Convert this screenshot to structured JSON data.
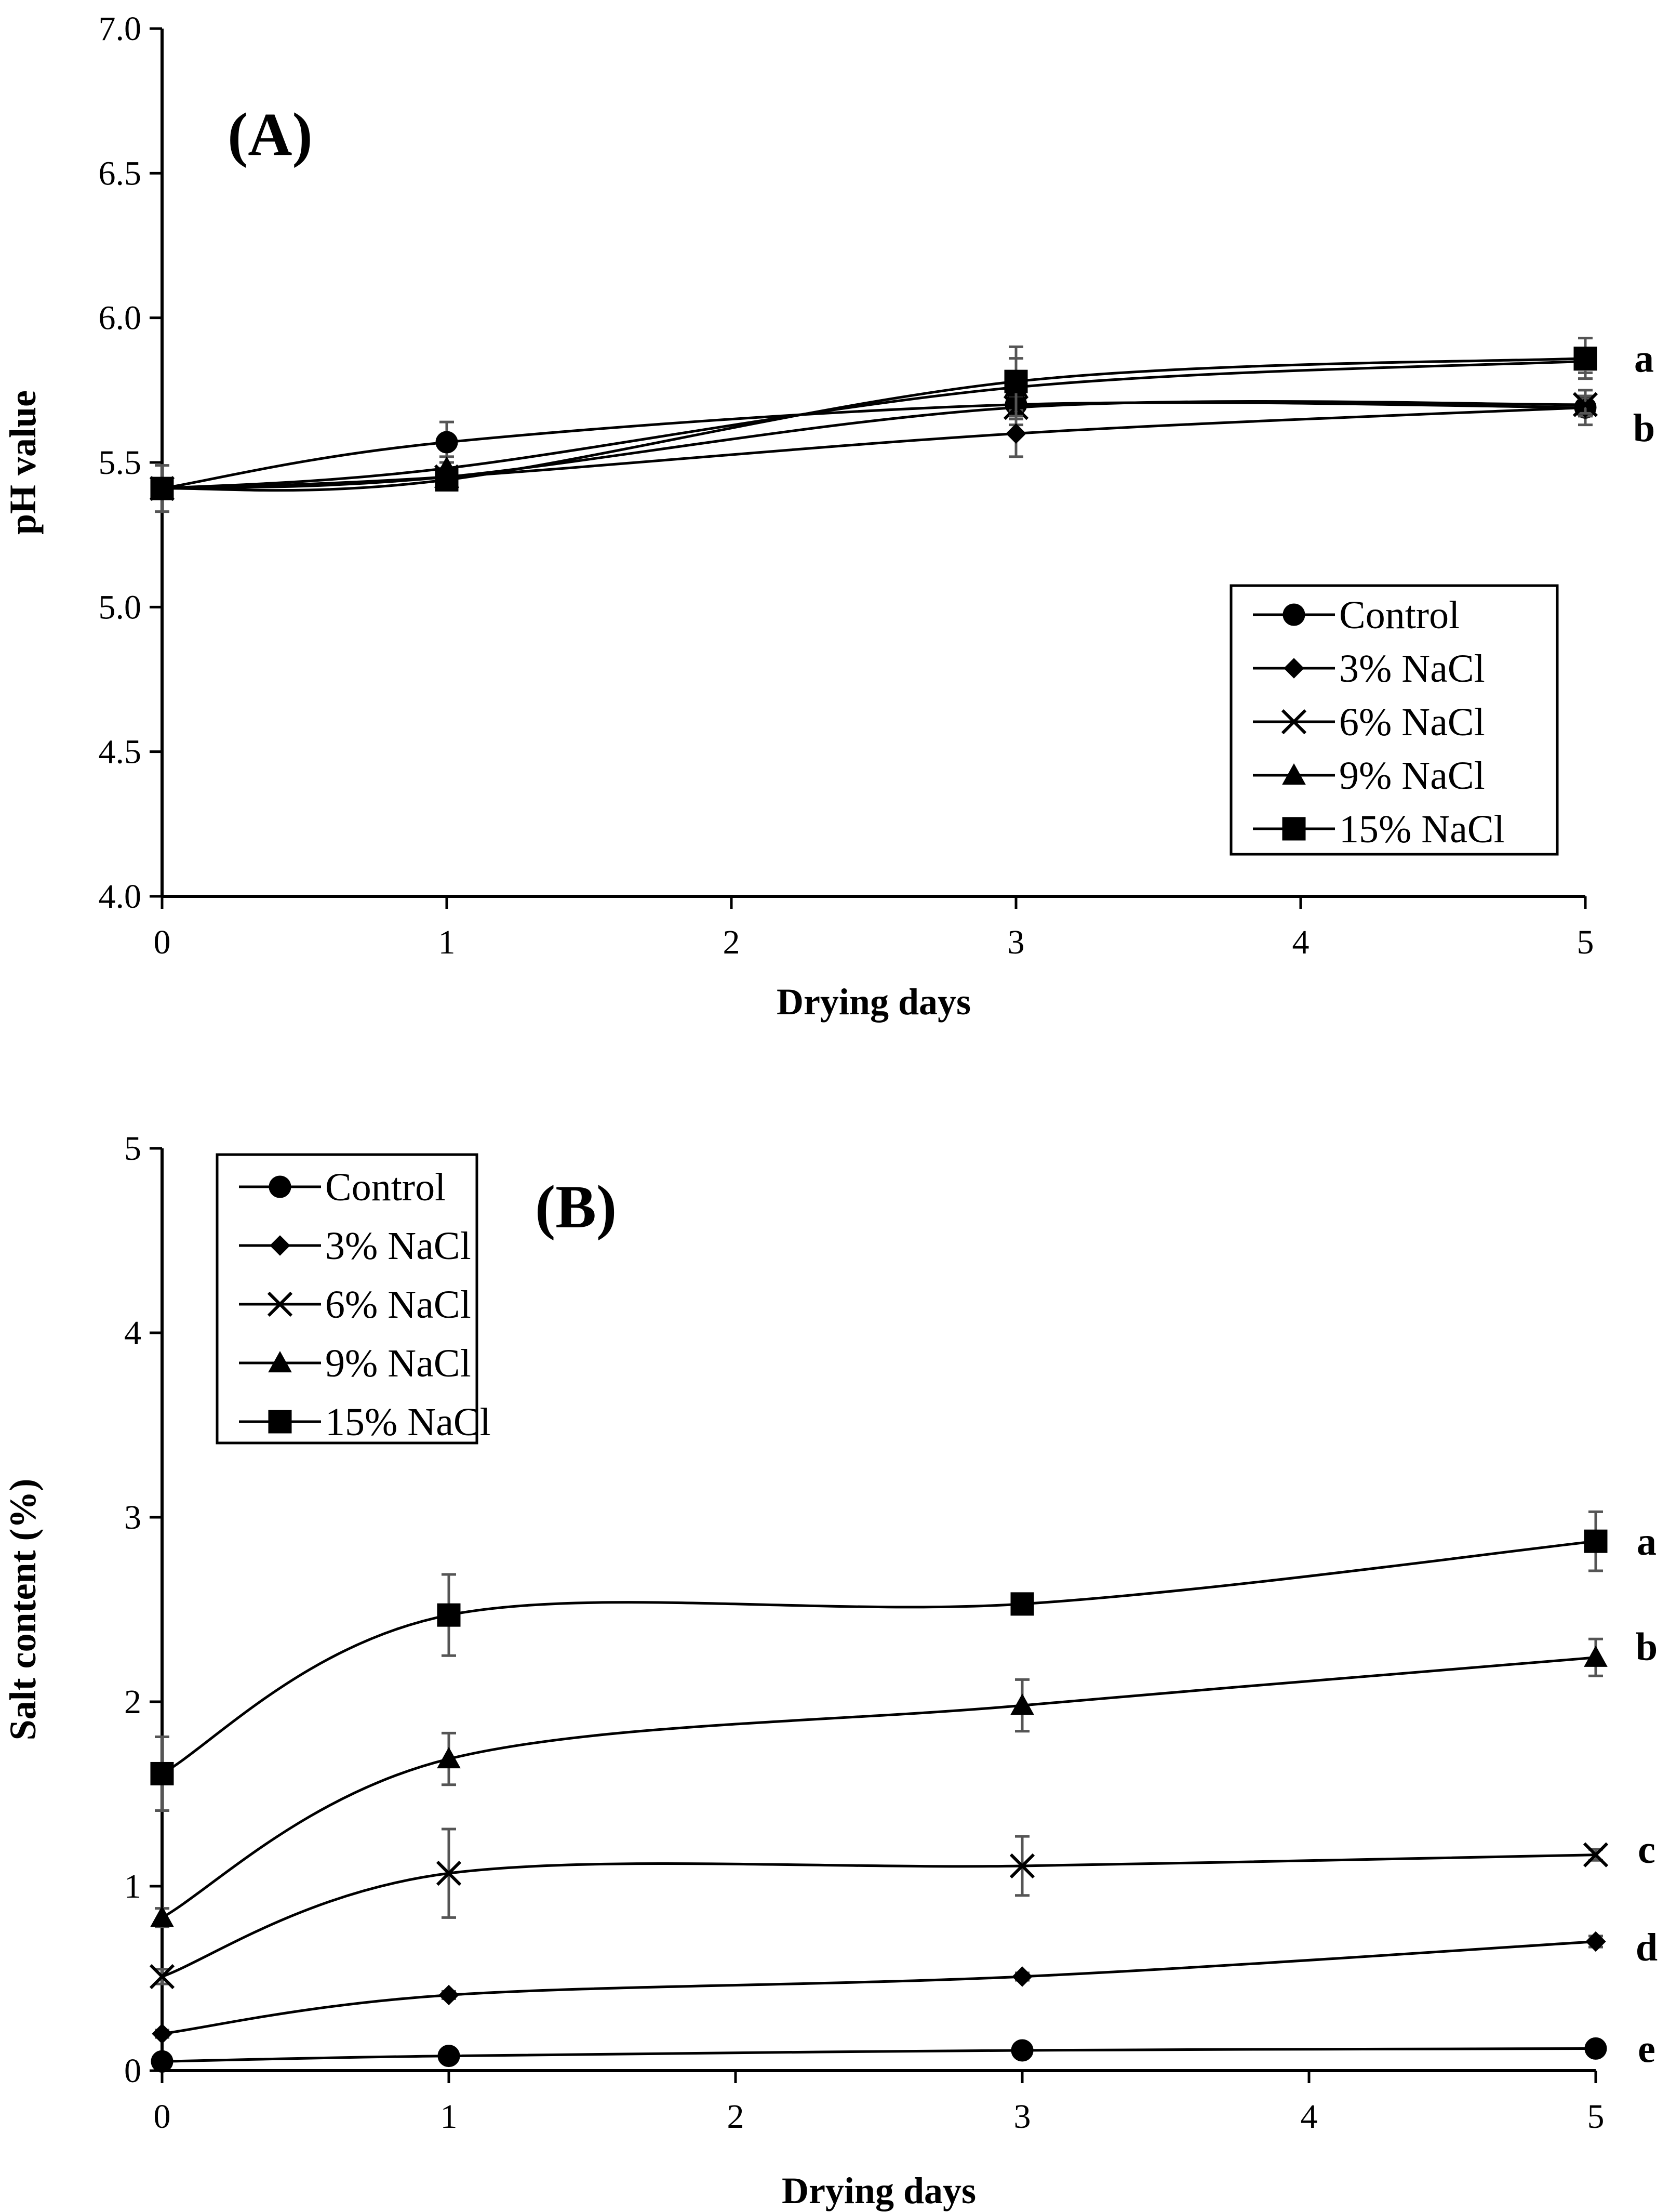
{
  "chart_data": [
    {
      "id": "A",
      "type": "line",
      "panel_label": "(A)",
      "xlabel": "Drying days",
      "ylabel": "pH value",
      "xlim": [
        0,
        5
      ],
      "ylim": [
        4.0,
        7.0
      ],
      "xticks": [
        "0",
        "1",
        "2",
        "3",
        "4",
        "5"
      ],
      "yticks": [
        "4.0",
        "4.5",
        "5.0",
        "5.5",
        "6.0",
        "6.5",
        "7.0"
      ],
      "x": [
        0,
        1,
        3,
        5
      ],
      "legend_position": "bottom-right",
      "series": [
        {
          "name": "Control",
          "marker": "circle",
          "values": [
            5.41,
            5.57,
            5.7,
            5.69
          ],
          "errors": [
            0.08,
            0.07,
            0.07,
            0.06
          ]
        },
        {
          "name": "3% NaCl",
          "marker": "diamond",
          "values": [
            5.41,
            5.45,
            5.6,
            5.69
          ],
          "errors": [
            0.02,
            0.03,
            0.08,
            0.03
          ]
        },
        {
          "name": "6% NaCl",
          "marker": "x",
          "values": [
            5.41,
            5.45,
            5.69,
            5.7
          ],
          "errors": [
            0.02,
            0.03,
            0.04,
            0.03
          ]
        },
        {
          "name": "9% NaCl",
          "marker": "triangle",
          "values": [
            5.41,
            5.48,
            5.76,
            5.85
          ],
          "errors": [
            0.02,
            0.04,
            0.1,
            0.04
          ]
        },
        {
          "name": "15% NaCl",
          "marker": "square",
          "values": [
            5.41,
            5.44,
            5.78,
            5.86
          ],
          "errors": [
            0.02,
            0.03,
            0.12,
            0.07
          ]
        }
      ],
      "significance": [
        {
          "text": "a",
          "y": 5.86
        },
        {
          "text": "b",
          "y": 5.62
        }
      ]
    },
    {
      "id": "B",
      "type": "line",
      "panel_label": "(B)",
      "xlabel": "Drying days",
      "ylabel": "Salt content (%)",
      "xlim": [
        0,
        5
      ],
      "ylim": [
        0,
        5
      ],
      "xticks": [
        "0",
        "1",
        "2",
        "3",
        "4",
        "5"
      ],
      "yticks": [
        "0",
        "1",
        "2",
        "3",
        "4",
        "5"
      ],
      "x": [
        0,
        1,
        3,
        5
      ],
      "legend_position": "top-left",
      "series": [
        {
          "name": "Control",
          "marker": "circle",
          "values": [
            0.05,
            0.08,
            0.11,
            0.12
          ],
          "errors": [
            0.01,
            0.01,
            0.02,
            0.02
          ]
        },
        {
          "name": "3% NaCl",
          "marker": "diamond",
          "values": [
            0.2,
            0.41,
            0.51,
            0.7
          ],
          "errors": [
            0.02,
            0.02,
            0.02,
            0.03
          ]
        },
        {
          "name": "6% NaCl",
          "marker": "x",
          "values": [
            0.51,
            1.07,
            1.11,
            1.17
          ],
          "errors": [
            0.04,
            0.24,
            0.16,
            0.03
          ]
        },
        {
          "name": "9% NaCl",
          "marker": "triangle",
          "values": [
            0.83,
            1.69,
            1.98,
            2.24
          ],
          "errors": [
            0.05,
            0.14,
            0.14,
            0.1
          ]
        },
        {
          "name": "15% NaCl",
          "marker": "square",
          "values": [
            1.61,
            2.47,
            2.53,
            2.87
          ],
          "errors": [
            0.2,
            0.22,
            0.03,
            0.16
          ]
        }
      ],
      "significance": [
        {
          "text": "a",
          "y": 2.87
        },
        {
          "text": "b",
          "y": 2.3
        },
        {
          "text": "c",
          "y": 1.2
        },
        {
          "text": "d",
          "y": 0.67
        },
        {
          "text": "e",
          "y": 0.12
        }
      ]
    }
  ]
}
